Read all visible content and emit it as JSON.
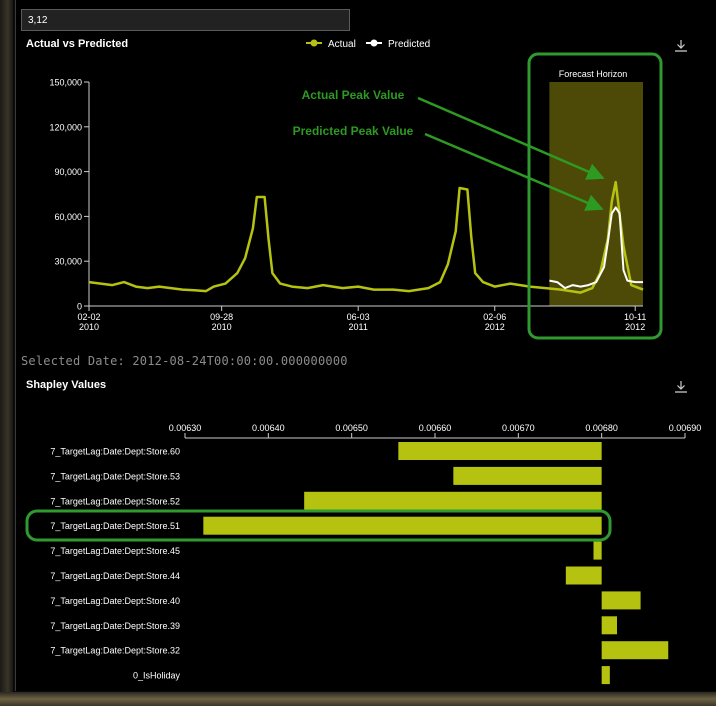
{
  "filter": {
    "value": "3,12"
  },
  "selected_date_text": "Selected Date: 2012-08-24T00:00:00.000000000",
  "line_chart": {
    "title": "Actual vs Predicted",
    "legend": {
      "actual": "Actual",
      "predicted": "Predicted"
    },
    "forecast_label": "Forecast Horizon",
    "annotations": {
      "actual_peak": "Actual Peak Value",
      "predicted_peak": "Predicted Peak Value"
    },
    "y_ticks": [
      "150,000",
      "120,000",
      "90,000",
      "60,000",
      "30,000",
      "0"
    ],
    "x_ticks": [
      {
        "l1": "02-02",
        "l2": "2010"
      },
      {
        "l1": "09-28",
        "l2": "2010"
      },
      {
        "l1": "06-03",
        "l2": "2011"
      },
      {
        "l1": "02-06",
        "l2": "2012"
      },
      {
        "l1": "10-11",
        "l2": "2012"
      }
    ]
  },
  "bar_chart": {
    "title": "Shapley Values",
    "x_ticks": [
      "0.00630",
      "0.00640",
      "0.00650",
      "0.00660",
      "0.00670",
      "0.00680",
      "0.00690"
    ]
  },
  "colors": {
    "actual": "#b5c20f",
    "predicted": "#ffffff",
    "bar": "#b5c20f",
    "highlight": "#2f9a2f",
    "annotation": "#2d9a22",
    "forecast_shade": "#4d4a08"
  },
  "chart_data": [
    {
      "type": "line",
      "title": "Actual vs Predicted",
      "x_range": [
        "2010-02-05",
        "2012-10-26"
      ],
      "ylim": [
        0,
        150000
      ],
      "forecast_horizon": [
        "2012-05-11",
        "2012-10-26"
      ],
      "series": [
        {
          "name": "Actual",
          "points": [
            [
              "2010-02-05",
              16000
            ],
            [
              "2010-02-26",
              15000
            ],
            [
              "2010-03-19",
              14000
            ],
            [
              "2010-04-09",
              16000
            ],
            [
              "2010-04-30",
              13000
            ],
            [
              "2010-05-21",
              12000
            ],
            [
              "2010-06-11",
              13000
            ],
            [
              "2010-07-02",
              12000
            ],
            [
              "2010-07-23",
              11000
            ],
            [
              "2010-08-13",
              10500
            ],
            [
              "2010-09-03",
              10000
            ],
            [
              "2010-09-17",
              13000
            ],
            [
              "2010-10-08",
              15000
            ],
            [
              "2010-10-29",
              22000
            ],
            [
              "2010-11-12",
              32000
            ],
            [
              "2010-11-26",
              52000
            ],
            [
              "2010-12-03",
              73000
            ],
            [
              "2010-12-17",
              73000
            ],
            [
              "2010-12-24",
              45000
            ],
            [
              "2010-12-31",
              22000
            ],
            [
              "2011-01-14",
              15000
            ],
            [
              "2011-02-04",
              13000
            ],
            [
              "2011-03-04",
              12000
            ],
            [
              "2011-04-01",
              14000
            ],
            [
              "2011-05-06",
              12000
            ],
            [
              "2011-06-03",
              13000
            ],
            [
              "2011-07-01",
              11000
            ],
            [
              "2011-08-05",
              11000
            ],
            [
              "2011-09-02",
              10000
            ],
            [
              "2011-10-07",
              12000
            ],
            [
              "2011-10-28",
              16000
            ],
            [
              "2011-11-11",
              28000
            ],
            [
              "2011-11-25",
              50000
            ],
            [
              "2011-12-02",
              79000
            ],
            [
              "2011-12-16",
              78000
            ],
            [
              "2011-12-23",
              46000
            ],
            [
              "2011-12-30",
              22000
            ],
            [
              "2012-01-13",
              16000
            ],
            [
              "2012-02-03",
              13000
            ],
            [
              "2012-03-02",
              15000
            ],
            [
              "2012-04-06",
              13000
            ],
            [
              "2012-05-04",
              12000
            ],
            [
              "2012-06-01",
              11000
            ],
            [
              "2012-07-06",
              9000
            ],
            [
              "2012-07-27",
              12000
            ],
            [
              "2012-08-10",
              22000
            ],
            [
              "2012-08-24",
              45000
            ],
            [
              "2012-08-31",
              70000
            ],
            [
              "2012-09-07",
              83000
            ],
            [
              "2012-09-21",
              40000
            ],
            [
              "2012-10-05",
              14000
            ],
            [
              "2012-10-26",
              11000
            ]
          ]
        },
        {
          "name": "Predicted",
          "points": [
            [
              "2012-05-11",
              17000
            ],
            [
              "2012-05-25",
              16000
            ],
            [
              "2012-06-08",
              12000
            ],
            [
              "2012-06-22",
              14000
            ],
            [
              "2012-07-06",
              13000
            ],
            [
              "2012-07-20",
              14000
            ],
            [
              "2012-08-03",
              16000
            ],
            [
              "2012-08-17",
              26000
            ],
            [
              "2012-08-24",
              43000
            ],
            [
              "2012-08-31",
              62000
            ],
            [
              "2012-09-07",
              66000
            ],
            [
              "2012-09-14",
              62000
            ],
            [
              "2012-09-21",
              24000
            ],
            [
              "2012-09-28",
              17000
            ],
            [
              "2012-10-12",
              16000
            ],
            [
              "2012-10-26",
              16000
            ]
          ]
        }
      ]
    },
    {
      "type": "bar",
      "title": "Shapley Values",
      "orientation": "horizontal",
      "base": 0.0068,
      "xlim": [
        0.0063,
        0.0069
      ],
      "categories": [
        "7_TargetLag:Date:Dept:Store.60",
        "7_TargetLag:Date:Dept:Store.53",
        "7_TargetLag:Date:Dept:Store.52",
        "7_TargetLag:Date:Dept:Store.51",
        "7_TargetLag:Date:Dept:Store.45",
        "7_TargetLag:Date:Dept:Store.44",
        "7_TargetLag:Date:Dept:Store.40",
        "7_TargetLag:Date:Dept:Store.39",
        "7_TargetLag:Date:Dept:Store.32",
        "0_IsHoliday"
      ],
      "values": [
        -0.000244,
        -0.000178,
        -0.000357,
        -0.000478,
        -9.8e-06,
        -4.3e-05,
        4.67e-05,
        1.84e-05,
        7.99e-05,
        9.8e-06
      ],
      "highlighted": "7_TargetLag:Date:Dept:Store.51"
    }
  ]
}
